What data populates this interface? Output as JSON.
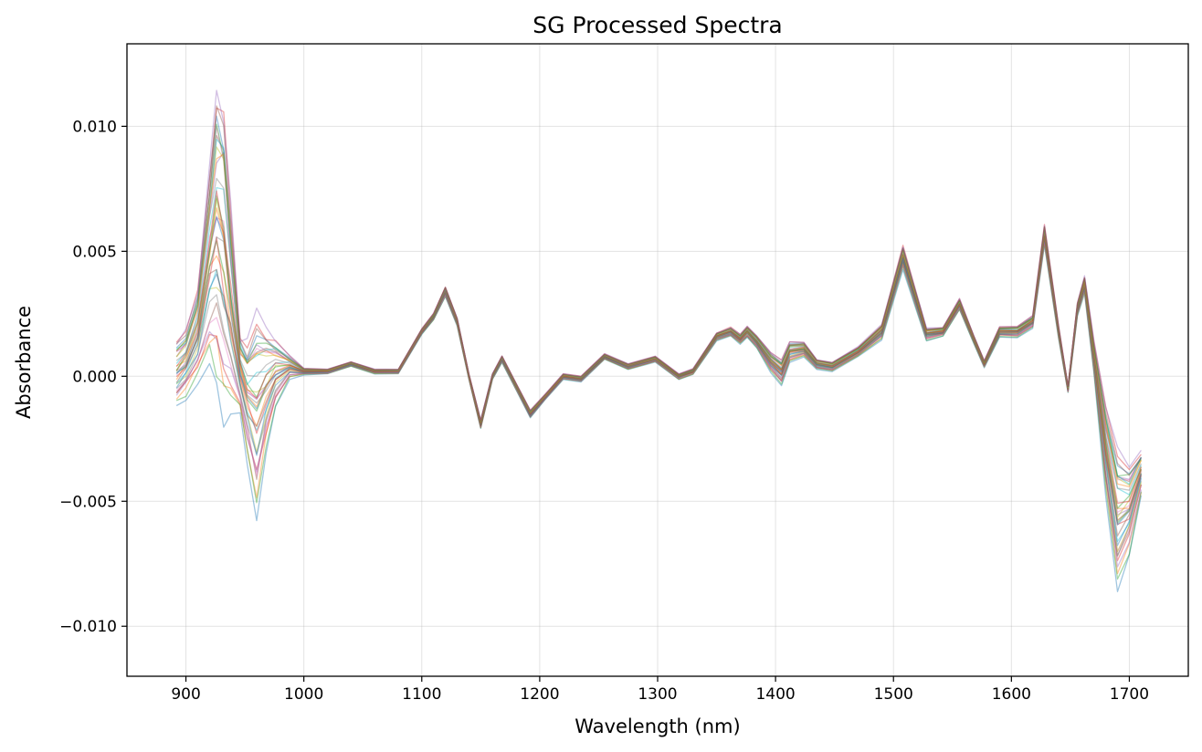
{
  "chart_data": {
    "type": "line",
    "title": "SG Processed Spectra",
    "xlabel": "Wavelength (nm)",
    "ylabel": "Absorbance",
    "xlim": [
      850,
      1750
    ],
    "ylim": [
      -0.012,
      0.0133
    ],
    "xticks": [
      900,
      1000,
      1100,
      1200,
      1300,
      1400,
      1500,
      1600,
      1700
    ],
    "xtick_labels": [
      "900",
      "1000",
      "1100",
      "1200",
      "1300",
      "1400",
      "1500",
      "1600",
      "1700"
    ],
    "yticks": [
      -0.01,
      -0.005,
      0.0,
      0.005,
      0.01
    ],
    "ytick_labels": [
      "−0.010",
      "−0.005",
      "0.000",
      "0.005",
      "0.010"
    ],
    "grid": true,
    "legend": "none",
    "series_count": 36,
    "series_colors": [
      "#1f77b4",
      "#ff7f0e",
      "#2ca02c",
      "#d62728",
      "#9467bd",
      "#8c564b",
      "#e377c2",
      "#7f7f7f",
      "#bcbd22",
      "#17becf"
    ],
    "x": [
      892,
      900,
      910,
      920,
      926,
      932,
      938,
      946,
      952,
      960,
      968,
      976,
      988,
      1000,
      1020,
      1040,
      1060,
      1080,
      1100,
      1110,
      1120,
      1130,
      1140,
      1150,
      1160,
      1168,
      1180,
      1192,
      1205,
      1220,
      1235,
      1255,
      1275,
      1298,
      1318,
      1330,
      1350,
      1362,
      1370,
      1376,
      1384,
      1396,
      1405,
      1412,
      1424,
      1435,
      1448,
      1470,
      1490,
      1508,
      1528,
      1542,
      1556,
      1568,
      1577,
      1590,
      1605,
      1618,
      1628,
      1640,
      1648,
      1656,
      1662,
      1670,
      1680,
      1690,
      1700,
      1710
    ],
    "mean_spectrum": [
      0.0002,
      0.0006,
      0.0018,
      0.0048,
      0.0062,
      0.0052,
      0.003,
      0.0002,
      -0.0008,
      -0.0012,
      -0.0004,
      0.0002,
      0.0004,
      0.0002,
      0.0002,
      0.0005,
      0.0002,
      0.0002,
      0.0018,
      0.0024,
      0.0034,
      0.0022,
      0.0,
      -0.0019,
      0.0,
      0.0007,
      -0.0004,
      -0.0015,
      -0.0008,
      0.0,
      -0.0001,
      0.0008,
      0.0004,
      0.0007,
      0.0,
      0.0002,
      0.0016,
      0.0018,
      0.0015,
      0.0018,
      0.0014,
      0.0006,
      0.0002,
      0.001,
      0.0011,
      0.0005,
      0.0004,
      0.001,
      0.0018,
      0.0048,
      0.0017,
      0.0018,
      0.0029,
      0.0015,
      0.0005,
      0.0018,
      0.0018,
      0.0022,
      0.0057,
      0.0018,
      -0.0005,
      0.0027,
      0.0037,
      0.0008,
      -0.0028,
      -0.0056,
      -0.0052,
      -0.0038
    ],
    "spread_profile": [
      0.0012,
      0.0012,
      0.0016,
      0.0036,
      0.0052,
      0.0056,
      0.0038,
      0.0014,
      0.0022,
      0.0038,
      0.0022,
      0.0012,
      0.0004,
      0.00012,
      8e-05,
      8e-05,
      8e-05,
      8e-05,
      0.0001,
      0.00012,
      0.00018,
      0.00014,
      0.0001,
      0.00016,
      0.0001,
      0.00012,
      0.00012,
      0.00014,
      0.0001,
      0.0001,
      0.0001,
      0.0001,
      0.0001,
      0.0001,
      0.0001,
      0.0001,
      0.00014,
      0.00016,
      0.00018,
      0.0002,
      0.00022,
      0.00034,
      0.00044,
      0.00036,
      0.00026,
      0.00018,
      0.00016,
      0.00018,
      0.00026,
      0.00042,
      0.00022,
      0.00016,
      0.0002,
      0.00014,
      0.00012,
      0.00018,
      0.0002,
      0.00022,
      0.00036,
      0.00022,
      0.00012,
      0.00024,
      0.0003,
      0.0006,
      0.0016,
      0.0026,
      0.0016,
      0.0008
    ]
  }
}
